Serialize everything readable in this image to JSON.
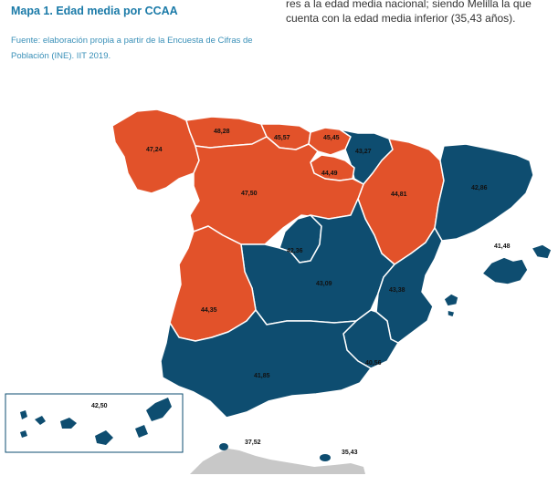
{
  "title": "Mapa 1. Edad media por CCAA",
  "source": "Fuente: elaboración propia a partir de la Encuesta de Cifras de Población (INE). IIT 2019.",
  "body_text": {
    "line1": "res a la edad media nacional; siendo Melilla la que",
    "line2": "cuenta con la edad media inferior (35,43 años)."
  },
  "colors": {
    "above_national": "#e2522a",
    "below_national": "#0e4d70",
    "border": "#ffffff",
    "africa": "#c8c8c8"
  },
  "regions": [
    {
      "name": "Galicia",
      "value": "47,24",
      "group": "above_national"
    },
    {
      "name": "Asturias",
      "value": "48,28",
      "group": "above_national"
    },
    {
      "name": "Cantabria",
      "value": "45,57",
      "group": "above_national"
    },
    {
      "name": "País Vasco",
      "value": "45,45",
      "group": "above_national"
    },
    {
      "name": "Navarra",
      "value": "43,27",
      "group": "below_national"
    },
    {
      "name": "La Rioja",
      "value": "44,49",
      "group": "above_national"
    },
    {
      "name": "Aragón",
      "value": "44,81",
      "group": "above_national"
    },
    {
      "name": "Cataluña",
      "value": "42,86",
      "group": "below_national"
    },
    {
      "name": "Castilla y León",
      "value": "47,50",
      "group": "above_national"
    },
    {
      "name": "Madrid",
      "value": "42,36",
      "group": "below_national"
    },
    {
      "name": "Castilla-La Mancha",
      "value": "43,09",
      "group": "below_national"
    },
    {
      "name": "Comunidad Valenciana",
      "value": "43,38",
      "group": "below_national"
    },
    {
      "name": "Extremadura",
      "value": "44,35",
      "group": "above_national"
    },
    {
      "name": "Andalucía",
      "value": "41,85",
      "group": "below_national"
    },
    {
      "name": "Murcia",
      "value": "40,56",
      "group": "below_national"
    },
    {
      "name": "Illes Balears",
      "value": "41,48",
      "group": "below_national"
    },
    {
      "name": "Canarias",
      "value": "42,50",
      "group": "below_national"
    },
    {
      "name": "Ceuta",
      "value": "37,52",
      "group": "below_national"
    },
    {
      "name": "Melilla",
      "value": "35,43",
      "group": "below_national"
    }
  ]
}
